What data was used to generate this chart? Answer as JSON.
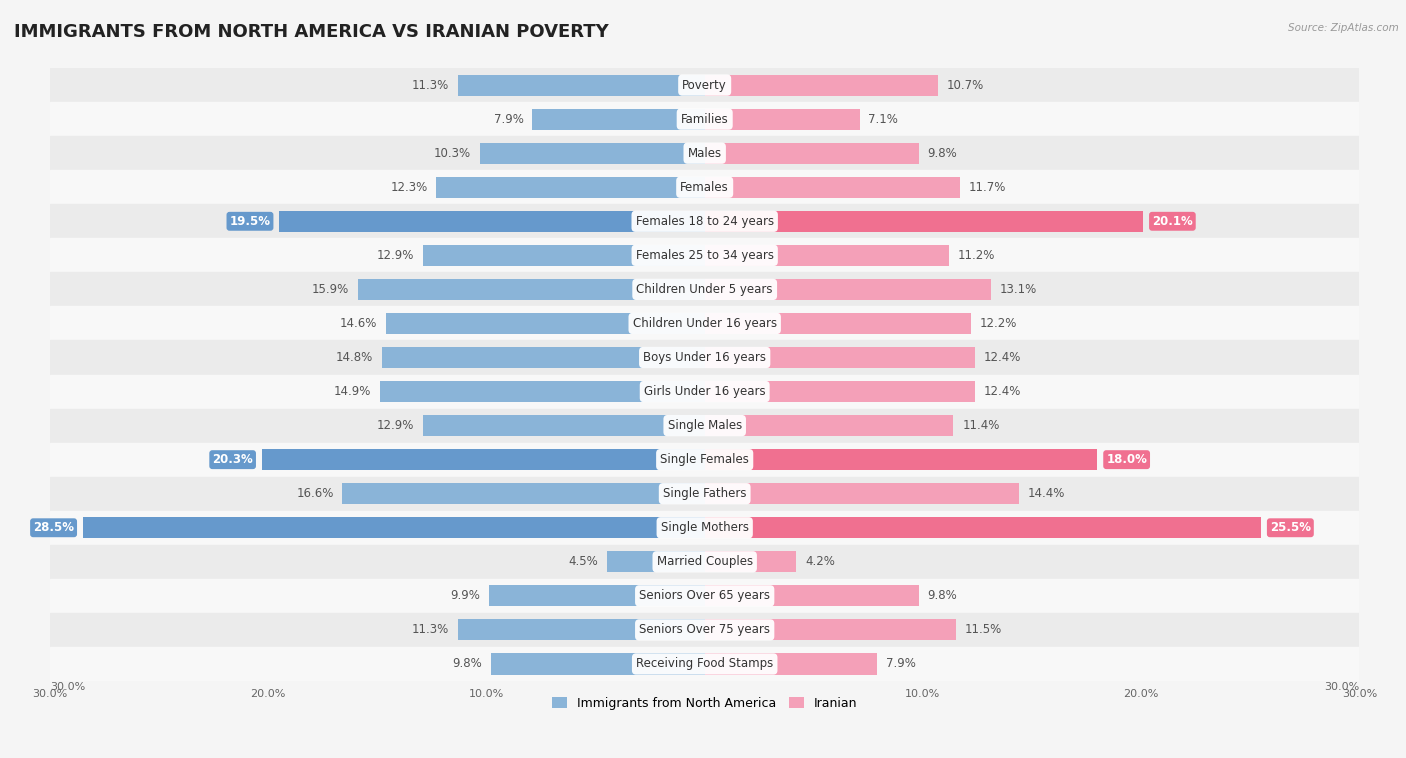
{
  "title": "IMMIGRANTS FROM NORTH AMERICA VS IRANIAN POVERTY",
  "source": "Source: ZipAtlas.com",
  "categories": [
    "Poverty",
    "Families",
    "Males",
    "Females",
    "Females 18 to 24 years",
    "Females 25 to 34 years",
    "Children Under 5 years",
    "Children Under 16 years",
    "Boys Under 16 years",
    "Girls Under 16 years",
    "Single Males",
    "Single Females",
    "Single Fathers",
    "Single Mothers",
    "Married Couples",
    "Seniors Over 65 years",
    "Seniors Over 75 years",
    "Receiving Food Stamps"
  ],
  "left_values": [
    11.3,
    7.9,
    10.3,
    12.3,
    19.5,
    12.9,
    15.9,
    14.6,
    14.8,
    14.9,
    12.9,
    20.3,
    16.6,
    28.5,
    4.5,
    9.9,
    11.3,
    9.8
  ],
  "right_values": [
    10.7,
    7.1,
    9.8,
    11.7,
    20.1,
    11.2,
    13.1,
    12.2,
    12.4,
    12.4,
    11.4,
    18.0,
    14.4,
    25.5,
    4.2,
    9.8,
    11.5,
    7.9
  ],
  "left_color": "#8ab4d8",
  "right_color": "#f4a0b8",
  "highlight_left_color": "#6699cc",
  "highlight_right_color": "#f07090",
  "highlight_rows": [
    4,
    11,
    13
  ],
  "bar_height": 0.62,
  "xlim": 30.0,
  "background_color": "#f5f5f5",
  "row_bg_color_odd": "#ebebeb",
  "row_bg_color_even": "#f8f8f8",
  "title_fontsize": 13,
  "label_fontsize": 8.5,
  "value_fontsize": 8.5,
  "legend_left": "Immigrants from North America",
  "legend_right": "Iranian"
}
